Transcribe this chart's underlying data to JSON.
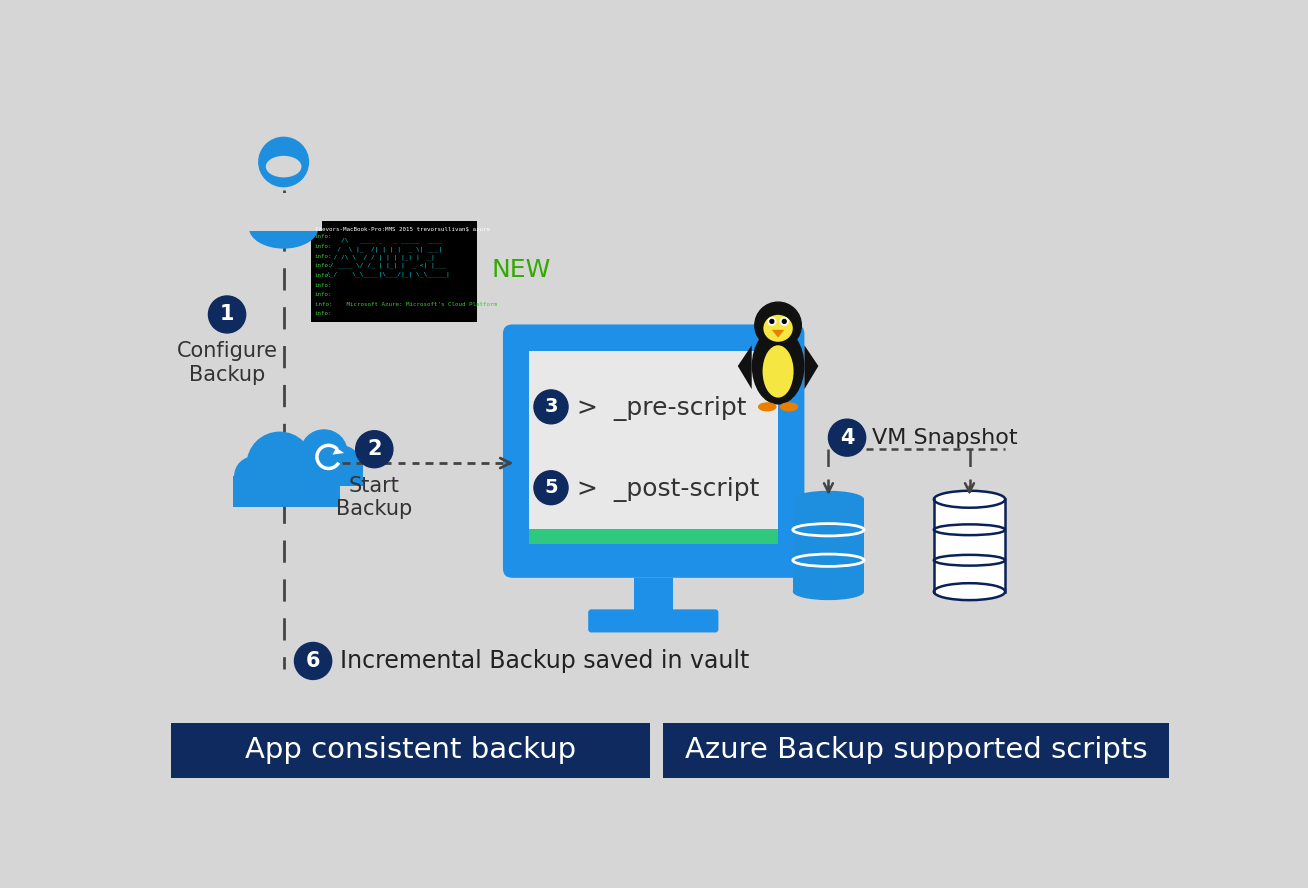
{
  "bg_color": "#d6d6d6",
  "dark_blue": "#0a2158",
  "bright_blue": "#1e8fde",
  "box_bg": "#0e2a5e",
  "terminal_bg": "#000000",
  "terminal_green": "#33cc33",
  "terminal_cyan": "#00cccc",
  "new_green": "#33aa00",
  "screen_inner": "#e8e8e8",
  "screen_border": "#1e90e8",
  "screen_bar": "#2ec97e",
  "title1": "App consistent backup",
  "title2": "Azure Backup supported scripts",
  "label1": "Configure\nBackup",
  "label2": "Start\nBackup",
  "label4": "VM Snapshot",
  "label6": "Incremental Backup saved in vault",
  "pre_script": ">  _pre-script",
  "post_script": ">  _post-script",
  "figsize": [
    13.08,
    8.88
  ],
  "dpi": 100
}
